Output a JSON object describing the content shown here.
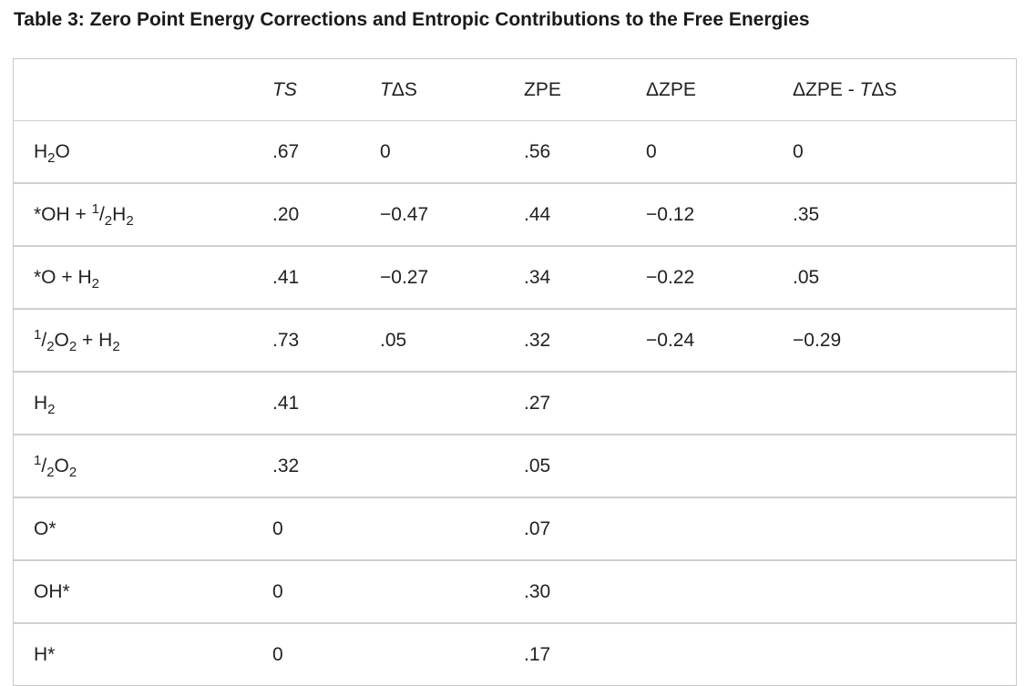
{
  "caption": "Table 3:  Zero Point Energy Corrections and Entropic Contributions to the Free Energies",
  "headers": {
    "ts_T": "T",
    "ts_S": "S",
    "tds_T": "T",
    "tds_rest": "ΔS",
    "zpe": "ZPE",
    "dzpe": "ΔZPE",
    "combo_prefix": "ΔZPE - ",
    "combo_T": "T",
    "combo_rest": "ΔS"
  },
  "rows": [
    {
      "species": {
        "a": "H",
        "s1": "2",
        "b": "O"
      },
      "ts": ".67",
      "tds": "0",
      "zpe": ".56",
      "dzpe": "0",
      "combo": "0"
    },
    {
      "species": {
        "a": "*OH + ",
        "sup": "1",
        "b": "/",
        "s1": "2",
        "c": "H",
        "s2": "2"
      },
      "ts": ".20",
      "tds": "−0.47",
      "zpe": ".44",
      "dzpe": "−0.12",
      "combo": ".35"
    },
    {
      "species": {
        "a": "*O + H",
        "s1": "2"
      },
      "ts": ".41",
      "tds": "−0.27",
      "zpe": ".34",
      "dzpe": "−0.22",
      "combo": ".05"
    },
    {
      "species": {
        "sup": "1",
        "a": "/",
        "s1": "2",
        "b": "O",
        "s2": "2",
        "c": " + H",
        "s3": "2"
      },
      "ts": ".73",
      "tds": ".05",
      "zpe": ".32",
      "dzpe": "−0.24",
      "combo": "−0.29"
    },
    {
      "species": {
        "a": "H",
        "s1": "2"
      },
      "ts": ".41",
      "tds": "",
      "zpe": ".27",
      "dzpe": "",
      "combo": ""
    },
    {
      "species": {
        "sup": "1",
        "a": "/",
        "s1": "2",
        "b": "O",
        "s2": "2"
      },
      "ts": ".32",
      "tds": "",
      "zpe": ".05",
      "dzpe": "",
      "combo": ""
    },
    {
      "species": {
        "a": "O*"
      },
      "ts": "0",
      "tds": "",
      "zpe": ".07",
      "dzpe": "",
      "combo": ""
    },
    {
      "species": {
        "a": "OH*"
      },
      "ts": "0",
      "tds": "",
      "zpe": ".30",
      "dzpe": "",
      "combo": ""
    },
    {
      "species": {
        "a": "H*"
      },
      "ts": "0",
      "tds": "",
      "zpe": ".17",
      "dzpe": "",
      "combo": ""
    }
  ]
}
